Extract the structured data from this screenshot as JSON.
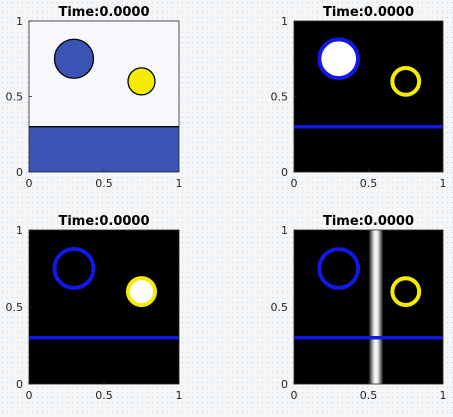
{
  "chart_data": [
    {
      "type": "scatter",
      "title": "Time:0.0000",
      "xlim": [
        0,
        1
      ],
      "ylim": [
        0,
        1
      ],
      "xticks": [
        0,
        0.5,
        1
      ],
      "yticks": [
        0,
        0.5,
        1
      ],
      "xtick_labels": [
        "0",
        "0.5",
        "1"
      ],
      "ytick_labels": [
        "0",
        "0.5",
        "1"
      ],
      "background": "#f7f8fb",
      "fluid": {
        "surface_y": 0.3,
        "color": "#3a54b4"
      },
      "circles": [
        {
          "cx": 0.3,
          "cy": 0.75,
          "r": 0.13,
          "fill": "#3a54b4",
          "stroke": "#000000"
        },
        {
          "cx": 0.75,
          "cy": 0.6,
          "r": 0.09,
          "fill": "#f5ec00",
          "stroke": "#000000"
        }
      ]
    },
    {
      "type": "scatter",
      "title": "Time:0.0000",
      "xlim": [
        0,
        1
      ],
      "ylim": [
        0,
        1
      ],
      "xticks": [
        0,
        0.5,
        1
      ],
      "yticks": [
        0,
        0.5,
        1
      ],
      "xtick_labels": [
        "0",
        "0.5",
        "1"
      ],
      "ytick_labels": [
        "0",
        "0.5",
        "1"
      ],
      "background": "#000000",
      "interface_line": {
        "y": 0.3,
        "color": "#1018e6"
      },
      "circles": [
        {
          "cx": 0.3,
          "cy": 0.75,
          "r": 0.13,
          "fill": "#ffffff",
          "stroke": "#1018e6"
        },
        {
          "cx": 0.75,
          "cy": 0.6,
          "r": 0.09,
          "fill": "#000000",
          "stroke": "#f5ec00"
        }
      ]
    },
    {
      "type": "scatter",
      "title": "Time:0.0000",
      "xlim": [
        0,
        1
      ],
      "ylim": [
        0,
        1
      ],
      "xticks": [
        0,
        0.5,
        1
      ],
      "yticks": [
        0,
        0.5,
        1
      ],
      "xtick_labels": [
        "0",
        "0.5",
        "1"
      ],
      "ytick_labels": [
        "0",
        "0.5",
        "1"
      ],
      "background": "#000000",
      "interface_line": {
        "y": 0.3,
        "color": "#1018e6"
      },
      "circles": [
        {
          "cx": 0.3,
          "cy": 0.75,
          "r": 0.13,
          "fill": "#000000",
          "stroke": "#1018e6"
        },
        {
          "cx": 0.75,
          "cy": 0.6,
          "r": 0.09,
          "fill": "#ffffff",
          "stroke": "#f5ec00"
        }
      ]
    },
    {
      "type": "scatter",
      "title": "Time:0.0000",
      "xlim": [
        0,
        1
      ],
      "ylim": [
        0,
        1
      ],
      "xticks": [
        0,
        0.5,
        1
      ],
      "yticks": [
        0,
        0.5,
        1
      ],
      "xtick_labels": [
        "0",
        "0.5",
        "1"
      ],
      "ytick_labels": [
        "0",
        "0.5",
        "1"
      ],
      "background": "#000000",
      "interface_line": {
        "y": 0.3,
        "color": "#1018e6"
      },
      "vertical_band": {
        "x_center": 0.55,
        "half_width": 0.05,
        "color": "#ffffff"
      },
      "circles": [
        {
          "cx": 0.3,
          "cy": 0.75,
          "r": 0.13,
          "fill": "#000000",
          "stroke": "#1018e6"
        },
        {
          "cx": 0.75,
          "cy": 0.6,
          "r": 0.09,
          "fill": "#000000",
          "stroke": "#f5ec00"
        }
      ]
    }
  ]
}
